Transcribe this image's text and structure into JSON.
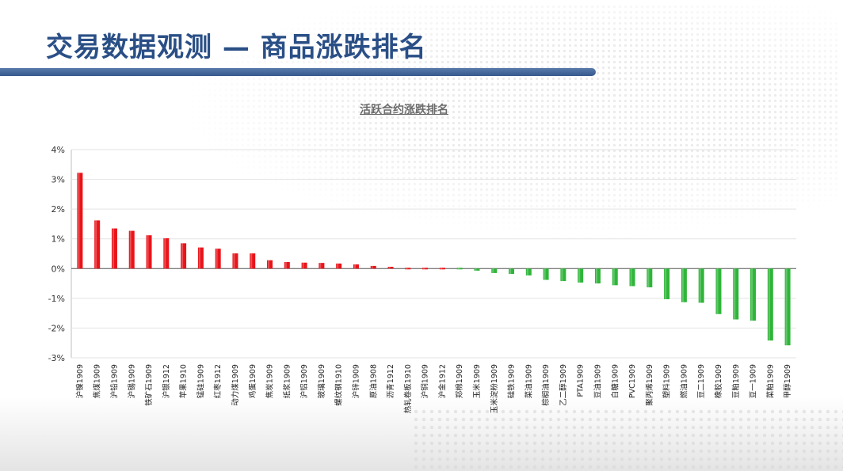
{
  "page": {
    "title": "交易数据观测 — 商品涨跌排名"
  },
  "colors": {
    "positive": "#e8141a",
    "negative": "#2fb53a",
    "title_blue": "#2a4f86"
  },
  "chart_data": {
    "type": "bar",
    "title": "活跃合约涨跌排名",
    "xlabel": "",
    "ylabel": "",
    "ylim": [
      -3,
      4
    ],
    "yticks": [
      "4%",
      "3%",
      "2%",
      "1%",
      "0%",
      "-1%",
      "-2%",
      "-3%"
    ],
    "grid": true,
    "categories": [
      "沪镍1909",
      "焦煤1909",
      "沪铅1909",
      "沪锡1909",
      "铁矿石1909",
      "沪银1912",
      "苹果1910",
      "锰硅1909",
      "红枣1912",
      "动力煤1909",
      "鸡蛋1909",
      "焦炭1909",
      "纸浆1909",
      "沪铝1909",
      "玻璃1909",
      "螺纹钢1910",
      "沪锌1909",
      "原油1908",
      "沥青1912",
      "热轧卷板1910",
      "沪铜1909",
      "沪金1912",
      "郑棉1909",
      "玉米1909",
      "玉米淀粉1909",
      "硅铁1909",
      "菜油1909",
      "棕榈油1909",
      "乙二醇1909",
      "PTA1909",
      "豆油1909",
      "白糖1909",
      "PVC1909",
      "聚丙烯1909",
      "塑料1909",
      "燃油1909",
      "豆二1909",
      "橡胶1909",
      "豆粕1909",
      "豆一1909",
      "菜粕1909",
      "甲醇1909"
    ],
    "values": [
      3.22,
      1.62,
      1.35,
      1.27,
      1.12,
      1.02,
      0.85,
      0.71,
      0.67,
      0.51,
      0.51,
      0.28,
      0.22,
      0.2,
      0.19,
      0.17,
      0.14,
      0.09,
      0.06,
      0.0,
      0.0,
      0.0,
      -0.05,
      -0.07,
      -0.15,
      -0.18,
      -0.23,
      -0.38,
      -0.42,
      -0.47,
      -0.5,
      -0.56,
      -0.59,
      -0.63,
      -1.03,
      -1.13,
      -1.15,
      -1.53,
      -1.71,
      -1.75,
      -2.42,
      -2.58
    ]
  }
}
